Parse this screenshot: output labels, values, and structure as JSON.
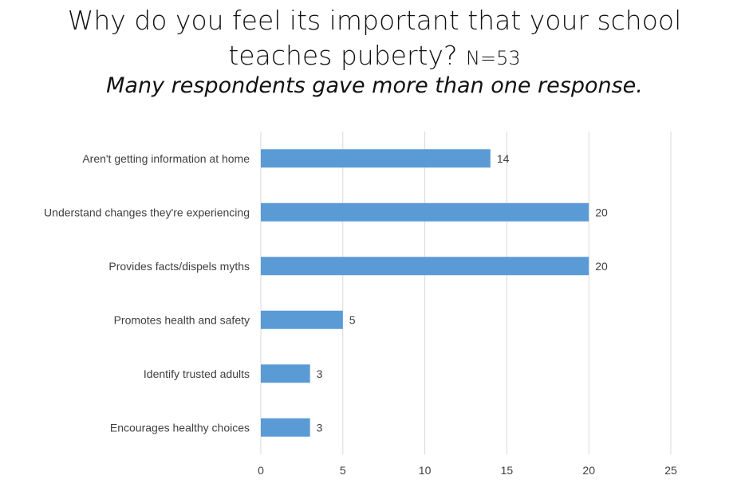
{
  "title": {
    "line1": "Why do you feel its important that your school",
    "line2": "teaches puberty?",
    "n_label": "N=53"
  },
  "subtitle": "Many respondents gave more than one response.",
  "colors": {
    "bar": "#5b9bd5",
    "grid": "#d9d9d9",
    "text": "#404040"
  },
  "chart_data": {
    "type": "bar",
    "orientation": "horizontal",
    "categories": [
      "Aren't getting information at home",
      "Understand changes they're experiencing",
      "Provides facts/dispels myths",
      "Promotes health and safety",
      "Identify trusted adults",
      "Encourages healthy choices"
    ],
    "values": [
      14,
      20,
      20,
      5,
      3,
      3
    ],
    "xlim": [
      0,
      25
    ],
    "xticks": [
      0,
      5,
      10,
      15,
      20,
      25
    ],
    "grid": true,
    "data_labels": true
  }
}
